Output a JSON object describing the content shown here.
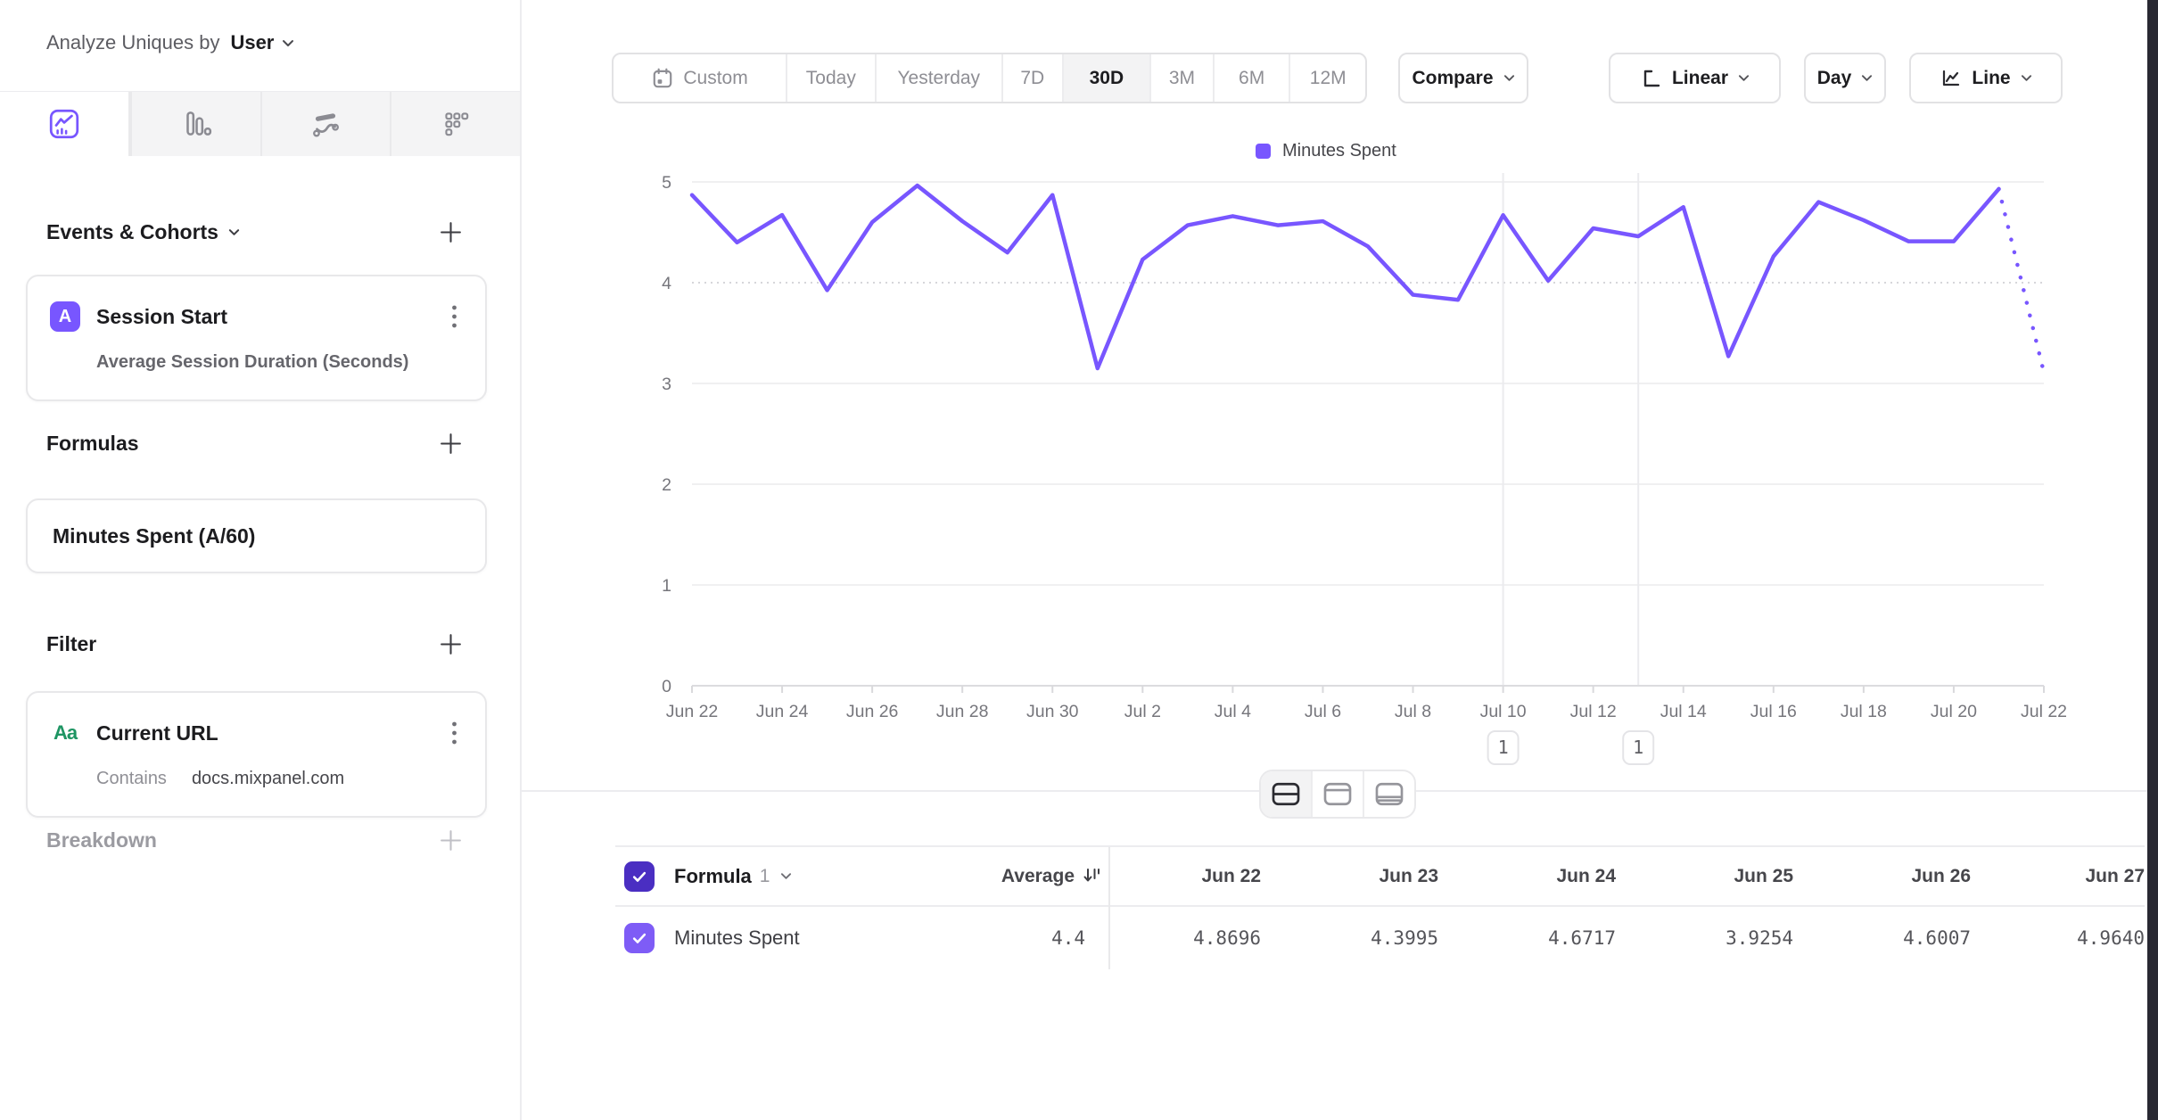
{
  "sidebar": {
    "analyze": {
      "label": "Analyze Uniques by",
      "value": "User",
      "icon": "chevron-down-icon"
    },
    "view_tabs": [
      {
        "icon": "insights-line-icon",
        "selected": true
      },
      {
        "icon": "bar-chart-icon",
        "selected": false
      },
      {
        "icon": "flows-icon",
        "selected": false
      },
      {
        "icon": "grid-metric-icon",
        "selected": false
      }
    ],
    "events_section": {
      "title": "Events & Cohorts",
      "add_icon": "plus-icon",
      "card": {
        "badge": "A",
        "badge_color": "#7856FF",
        "title": "Session Start",
        "subtitle": "Average Session Duration (Seconds)",
        "menu_icon": "kebab-icon"
      }
    },
    "formulas_section": {
      "title": "Formulas",
      "add_icon": "plus-icon",
      "card": {
        "title": "Minutes Spent (A/60)"
      }
    },
    "filter_section": {
      "title": "Filter",
      "add_icon": "plus-icon",
      "card": {
        "type_icon": "Aa",
        "type_color": "#1E9563",
        "title": "Current URL",
        "operator": "Contains",
        "value": "docs.mixpanel.com",
        "menu_icon": "kebab-icon"
      }
    },
    "breakdown_section": {
      "title": "Breakdown",
      "add_icon": "plus-icon"
    }
  },
  "toolbar": {
    "date_ranges": [
      {
        "label": "Custom",
        "icon": "calendar-icon",
        "selected": false
      },
      {
        "label": "Today",
        "selected": false
      },
      {
        "label": "Yesterday",
        "selected": false
      },
      {
        "label": "7D",
        "selected": false
      },
      {
        "label": "30D",
        "selected": true
      },
      {
        "label": "3M",
        "selected": false
      },
      {
        "label": "6M",
        "selected": false
      },
      {
        "label": "12M",
        "selected": false
      }
    ],
    "compare": {
      "label": "Compare"
    },
    "scale": {
      "label": "Linear",
      "icon": "axis-linear-icon"
    },
    "granularity": {
      "label": "Day"
    },
    "chart_type": {
      "label": "Line",
      "icon": "line-chart-icon"
    }
  },
  "legend": {
    "label": "Minutes Spent",
    "color": "#7856FF"
  },
  "chart_data": {
    "type": "line",
    "title": "Minutes Spent over time",
    "line_color": "#7856FF",
    "categories": [
      "Jun 22",
      "Jun 23",
      "Jun 24",
      "Jun 25",
      "Jun 26",
      "Jun 27",
      "Jun 28",
      "Jun 29",
      "Jun 30",
      "Jul 1",
      "Jul 2",
      "Jul 3",
      "Jul 4",
      "Jul 5",
      "Jul 6",
      "Jul 7",
      "Jul 8",
      "Jul 9",
      "Jul 10",
      "Jul 11",
      "Jul 12",
      "Jul 13",
      "Jul 14",
      "Jul 15",
      "Jul 16",
      "Jul 17",
      "Jul 18",
      "Jul 19",
      "Jul 20",
      "Jul 21",
      "Jul 22"
    ],
    "series": [
      {
        "name": "Minutes Spent",
        "values": [
          4.8696,
          4.3995,
          4.6717,
          3.9254,
          4.6007,
          4.964,
          4.61,
          4.3,
          4.87,
          3.15,
          4.23,
          4.57,
          4.66,
          4.57,
          4.61,
          4.36,
          3.88,
          3.83,
          4.67,
          4.02,
          4.54,
          4.46,
          4.75,
          3.27,
          4.26,
          4.8,
          4.62,
          4.41,
          4.41,
          4.93,
          3.11
        ]
      }
    ],
    "dotted_from_index": 29,
    "ylim": [
      0,
      5
    ],
    "yticks": [
      0,
      1,
      2,
      3,
      4,
      5
    ],
    "xtick_every": 2,
    "grid": true,
    "legend_position": "top-center",
    "annotations": [
      {
        "index": 18,
        "category": "Jul 10",
        "label": "1"
      },
      {
        "index": 21,
        "category": "Jul 13",
        "label": "1"
      }
    ]
  },
  "view_toggle": [
    {
      "icon": "split-view-icon",
      "selected": true
    },
    {
      "icon": "top-panel-view-icon",
      "selected": false
    },
    {
      "icon": "bottom-panel-view-icon",
      "selected": false
    }
  ],
  "table": {
    "header": {
      "title": "Formula",
      "title_suffix": "1",
      "average_label": "Average",
      "sort_icon": "sort-icon",
      "columns": [
        "Jun 22",
        "Jun 23",
        "Jun 24",
        "Jun 25",
        "Jun 26",
        "Jun 27"
      ]
    },
    "row": {
      "label": "Minutes Spent",
      "average": "4.4",
      "values": [
        "4.8696",
        "4.3995",
        "4.6717",
        "3.9254",
        "4.6007",
        "4.9640"
      ]
    },
    "checkbox_header_color": "#4A2EC2",
    "checkbox_row_color": "#7E5CF6"
  }
}
